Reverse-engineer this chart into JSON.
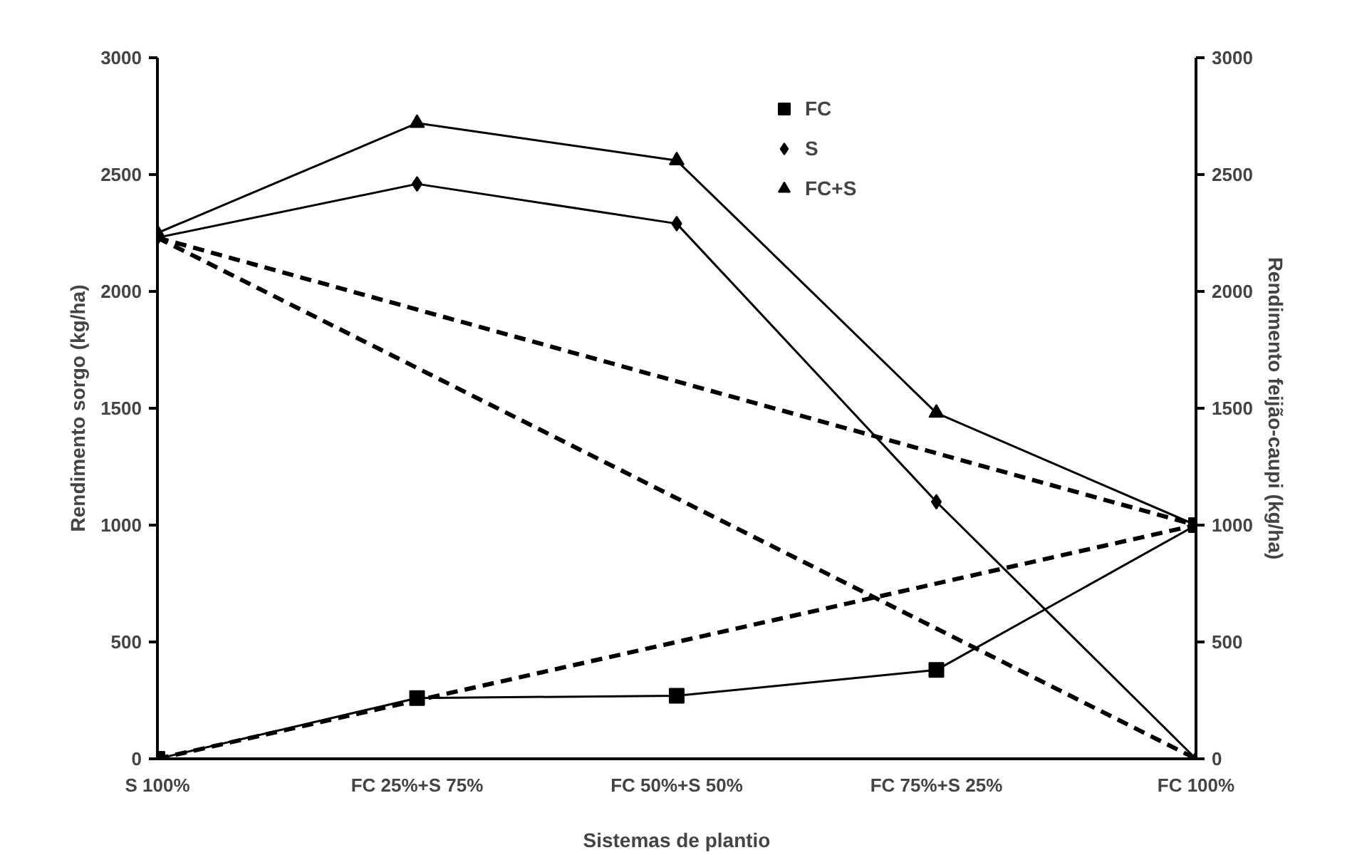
{
  "chart_data": {
    "type": "line",
    "xlabel": "Sistemas de plantio",
    "ylabel": "Rendimento sorgo (kg/ha)",
    "y2label": "Rendimento feijão-caupi (kg/ha)",
    "categories": [
      "S 100%",
      "FC 25%+S 75%",
      "FC 50%+S 50%",
      "FC 75%+S 25%",
      "FC 100%"
    ],
    "ylim": [
      0,
      3000
    ],
    "yticks": [
      0,
      500,
      1000,
      1500,
      2000,
      2500,
      3000
    ],
    "y2lim": [
      0,
      3000
    ],
    "y2ticks": [
      0,
      500,
      1000,
      1500,
      2000,
      2500,
      3000
    ],
    "grid": false,
    "legend": "top right",
    "series": [
      {
        "name": "FC",
        "color": "#000000",
        "marker": "square",
        "line_style": "solid",
        "values": [
          0,
          260,
          270,
          380,
          1000
        ]
      },
      {
        "name": "S",
        "color": "#000000",
        "marker": "diamond",
        "line_style": "solid",
        "values": [
          2230,
          2460,
          2290,
          1100,
          0
        ]
      },
      {
        "name": "FC+S",
        "color": "#000000",
        "marker": "triangle",
        "line_style": "solid",
        "values": [
          2250,
          2720,
          2560,
          1480,
          1000
        ]
      },
      {
        "color": "#000000",
        "marker": "none",
        "line_style": "dashed",
        "values": [
          2230,
          null,
          null,
          null,
          0
        ]
      },
      {
        "color": "#000000",
        "marker": "none",
        "line_style": "dashed",
        "values": [
          0,
          null,
          null,
          null,
          1000
        ]
      },
      {
        "color": "#000000",
        "marker": "none",
        "line_style": "dashed",
        "values": [
          2230,
          null,
          null,
          null,
          1000
        ]
      }
    ]
  }
}
